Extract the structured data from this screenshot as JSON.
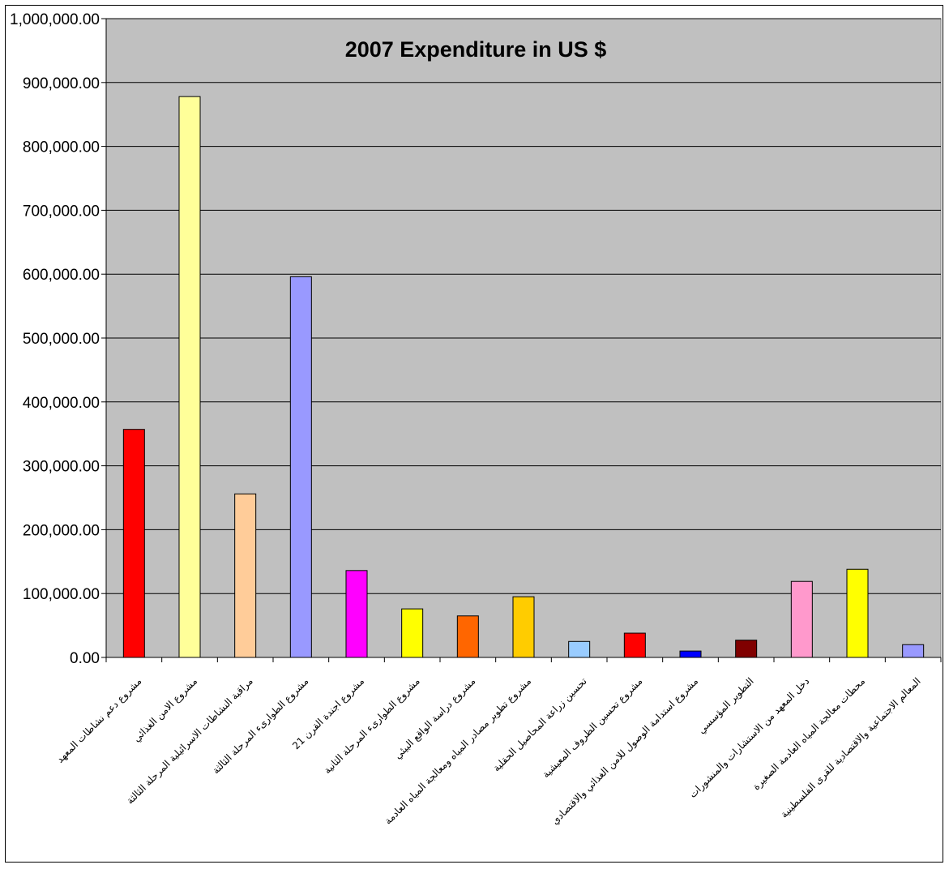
{
  "chart_data": {
    "type": "bar",
    "title": "2007 Expenditure in US $",
    "xlabel": "",
    "ylabel": "",
    "ylim": [
      0,
      1000000
    ],
    "yticks": [
      0,
      100000,
      200000,
      300000,
      400000,
      500000,
      600000,
      700000,
      800000,
      900000,
      1000000
    ],
    "ytick_labels": [
      "0.00",
      "100,000.00",
      "200,000.00",
      "300,000.00",
      "400,000.00",
      "500,000.00",
      "600,000.00",
      "700,000.00",
      "800,000.00",
      "900,000.00",
      "1,000,000.00"
    ],
    "grid": true,
    "legend": "none",
    "plot_background": "#c0c0c0",
    "categories": [
      "مشروع دعم نشاطات المعهد",
      "مشروع الامن الغذائي",
      "مراقبة النشاطات الاسرائيلية المرحلة الثالثة",
      "مشروع الطوارىء المرحلة الثالثة",
      "مشروع اجندة القرن 21",
      "مشروع الطوارىء المرحلة الثانية",
      "مشروع دراسة الواقع البيئي",
      "مشروع تطوير مصادر المياه ومعالجة المياه العادمة",
      "تحسين زراعة المحاصيل الحقلية",
      "مشروع تحسين الظروف المعيشية",
      "مشروع استدامة الوصول للامن الغذائي والاقتصادي",
      "التطوير المؤسسي",
      "دخل المعهد من الاستشارات والمنشورات",
      "محطات معالجة المياه العادمة الصغيرة",
      "المعالم الاجتماعية والاقتصادية للقرى الفلسطينية"
    ],
    "values": [
      357000,
      878000,
      256000,
      596000,
      136000,
      76000,
      65000,
      95000,
      25000,
      38000,
      10000,
      27000,
      119000,
      138000,
      20000
    ],
    "colors": [
      "#ff0000",
      "#ffff99",
      "#ffcc99",
      "#9999ff",
      "#ff00ff",
      "#ffff00",
      "#ff6600",
      "#ffcc00",
      "#99ccff",
      "#ff0000",
      "#0000ff",
      "#800000",
      "#ff99cc",
      "#ffff00",
      "#9999ff"
    ]
  }
}
